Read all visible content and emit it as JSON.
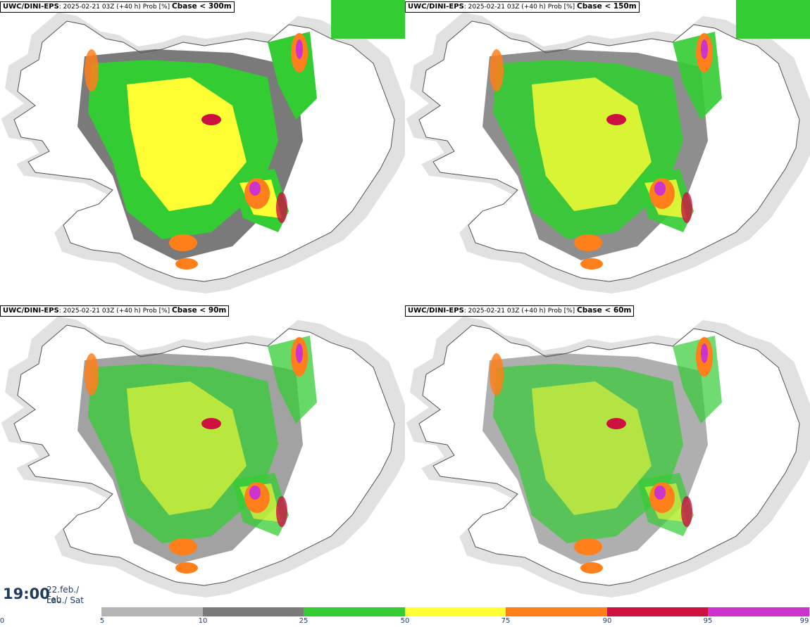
{
  "panels": [
    {
      "model": "UWC/DINI-EPS",
      "info": ": 2025-02-21 03Z (+40 h) Prob [%] ",
      "param": "Cbase < 300m"
    },
    {
      "model": "UWC/DINI-EPS",
      "info": ": 2025-02-21 03Z (+40 h) Prob [%] ",
      "param": "Cbase < 150m"
    },
    {
      "model": "UWC/DINI-EPS",
      "info": ": 2025-02-21 03Z (+40 h) Prob [%] ",
      "param": "Cbase < 90m"
    },
    {
      "model": "UWC/DINI-EPS",
      "info": ": 2025-02-21 03Z (+40 h) Prob [%] ",
      "param": "Cbase < 60m"
    }
  ],
  "valid_time": {
    "time": "19:00",
    "date_line1": "22.feb./ Feb",
    "date_line2": "Lau./ Sat"
  },
  "colorbar": {
    "ticks": [
      "0",
      "5",
      "10",
      "25",
      "50",
      "75",
      "90",
      "95",
      "99"
    ],
    "colors": [
      "#b4b4b4",
      "#7a7a7a",
      "#33cc33",
      "#ffff33",
      "#ff7f1a",
      "#cc1040",
      "#cc33cc",
      "#f7c6f5"
    ]
  },
  "palette": {
    "land": "#ffffff",
    "coast": "#555555",
    "light_grey": "#c8c8c8",
    "dark_grey": "#7a7a7a",
    "green": "#33cc33",
    "yellow": "#ffff33",
    "orange": "#ff7f1a",
    "red": "#cc1040",
    "magenta": "#cc33cc"
  }
}
